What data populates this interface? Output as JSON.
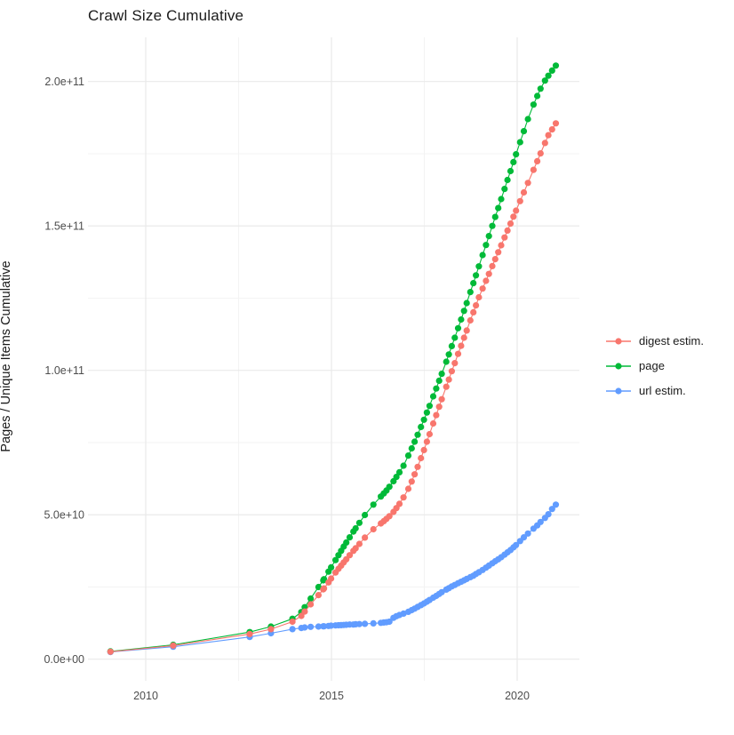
{
  "chart_data": {
    "type": "scatter",
    "title": "Crawl Size Cumulative",
    "xlabel": "",
    "ylabel": "Pages / Unique Items Cumulative",
    "y_unit": "items (values_e9 = billions)",
    "legend_position": "right",
    "grid": true,
    "background": "#ffffff",
    "grid_color": "#e9e9e9",
    "grid_minor_color": "#f3f3f3",
    "tick_text_color": "#4d4d4d",
    "x_range": [
      2008.45,
      2021.65
    ],
    "y_range_e9": [
      -7.5,
      215
    ],
    "x_ticks": [
      2010,
      2015,
      2020
    ],
    "x_tick_labels": [
      "2010",
      "2015",
      "2020"
    ],
    "x_minor_ticks": [
      2012.5,
      2017.5
    ],
    "y_ticks_e9": [
      0,
      50,
      100,
      150,
      200
    ],
    "y_tick_labels": [
      "0.0e+00",
      "5.0e+10",
      "1.0e+11",
      "1.5e+11",
      "2.0e+11"
    ],
    "y_minor_ticks_e9": [
      25,
      75,
      125,
      175
    ],
    "x": [
      2009.05,
      2010.74,
      2012.8,
      2013.37,
      2013.95,
      2014.19,
      2014.28,
      2014.44,
      2014.65,
      2014.78,
      2014.8,
      2014.92,
      2014.99,
      2015.11,
      2015.19,
      2015.26,
      2015.33,
      2015.4,
      2015.49,
      2015.59,
      2015.65,
      2015.75,
      2015.9,
      2016.13,
      2016.33,
      2016.41,
      2016.48,
      2016.56,
      2016.67,
      2016.75,
      2016.83,
      2016.94,
      2017.07,
      2017.16,
      2017.24,
      2017.32,
      2017.41,
      2017.49,
      2017.57,
      2017.64,
      2017.74,
      2017.82,
      2017.9,
      2017.97,
      2018.09,
      2018.16,
      2018.24,
      2018.32,
      2018.41,
      2018.49,
      2018.57,
      2018.64,
      2018.74,
      2018.82,
      2018.89,
      2018.97,
      2019.07,
      2019.16,
      2019.24,
      2019.33,
      2019.41,
      2019.49,
      2019.57,
      2019.66,
      2019.74,
      2019.82,
      2019.9,
      2019.97,
      2020.08,
      2020.18,
      2020.29,
      2020.44,
      2020.54,
      2020.63,
      2020.75,
      2020.84,
      2020.94,
      2021.04
    ],
    "series": [
      {
        "name": "digest estim.",
        "color": "#F8766D",
        "values_e9": [
          2.6,
          4.7,
          8.7,
          10.4,
          13.0,
          15.0,
          16.5,
          19.0,
          22.2,
          24.2,
          24.5,
          26.6,
          27.9,
          30.0,
          31.3,
          32.4,
          33.5,
          34.6,
          36.0,
          37.5,
          38.4,
          39.9,
          42.1,
          45.0,
          47.0,
          47.8,
          48.6,
          49.5,
          51.0,
          52.3,
          53.8,
          56.0,
          59.0,
          61.5,
          64.0,
          66.6,
          69.6,
          72.4,
          75.3,
          77.9,
          81.6,
          84.5,
          87.4,
          90.0,
          94.3,
          96.8,
          99.7,
          102.5,
          105.7,
          108.5,
          111.3,
          113.8,
          117.3,
          120.1,
          122.5,
          125.3,
          128.3,
          131.0,
          133.4,
          136.1,
          138.5,
          140.9,
          143.3,
          146.0,
          148.4,
          150.8,
          153.2,
          155.3,
          158.6,
          161.6,
          164.9,
          169.4,
          172.4,
          175.1,
          178.7,
          181.4,
          183.4,
          185.5
        ]
      },
      {
        "name": "page",
        "color": "#00BA38",
        "values_e9": [
          2.7,
          5.0,
          9.4,
          11.3,
          14.0,
          16.3,
          18.0,
          21.0,
          25.0,
          27.3,
          27.7,
          30.3,
          31.8,
          34.3,
          36.0,
          37.5,
          39.0,
          40.4,
          42.2,
          44.2,
          45.3,
          47.2,
          49.9,
          53.5,
          56.3,
          57.4,
          58.4,
          59.7,
          61.6,
          63.1,
          64.7,
          67.0,
          70.5,
          73.0,
          75.3,
          77.7,
          80.4,
          82.9,
          85.4,
          87.7,
          91.0,
          93.7,
          96.4,
          98.8,
          103.0,
          105.5,
          108.4,
          111.3,
          114.6,
          117.6,
          120.6,
          123.3,
          127.1,
          130.2,
          132.9,
          136.0,
          139.9,
          143.4,
          146.5,
          150.0,
          153.1,
          156.2,
          159.3,
          162.8,
          165.9,
          169.0,
          172.1,
          174.8,
          179.0,
          182.8,
          187.0,
          192.0,
          195.0,
          197.5,
          200.3,
          202.0,
          203.8,
          205.5
        ]
      },
      {
        "name": "url estim.",
        "color": "#619CFF",
        "values_e9": [
          2.5,
          4.3,
          7.7,
          9.0,
          10.4,
          10.8,
          11.0,
          11.2,
          11.3,
          11.4,
          11.4,
          11.5,
          11.6,
          11.7,
          11.75,
          11.8,
          11.85,
          11.9,
          12.0,
          12.0,
          12.1,
          12.15,
          12.25,
          12.4,
          12.6,
          12.7,
          12.8,
          13.0,
          14.3,
          14.9,
          15.3,
          15.8,
          16.4,
          17.0,
          17.5,
          18.1,
          18.7,
          19.3,
          19.9,
          20.5,
          21.3,
          21.9,
          22.6,
          23.2,
          24.1,
          24.6,
          25.2,
          25.7,
          26.3,
          26.8,
          27.3,
          27.8,
          28.4,
          28.9,
          29.5,
          30.1,
          30.9,
          31.7,
          32.4,
          33.2,
          33.9,
          34.6,
          35.3,
          36.2,
          37.0,
          37.8,
          38.7,
          39.5,
          40.9,
          42.2,
          43.5,
          45.2,
          46.3,
          47.5,
          48.9,
          50.2,
          52.0,
          53.5
        ]
      }
    ]
  }
}
